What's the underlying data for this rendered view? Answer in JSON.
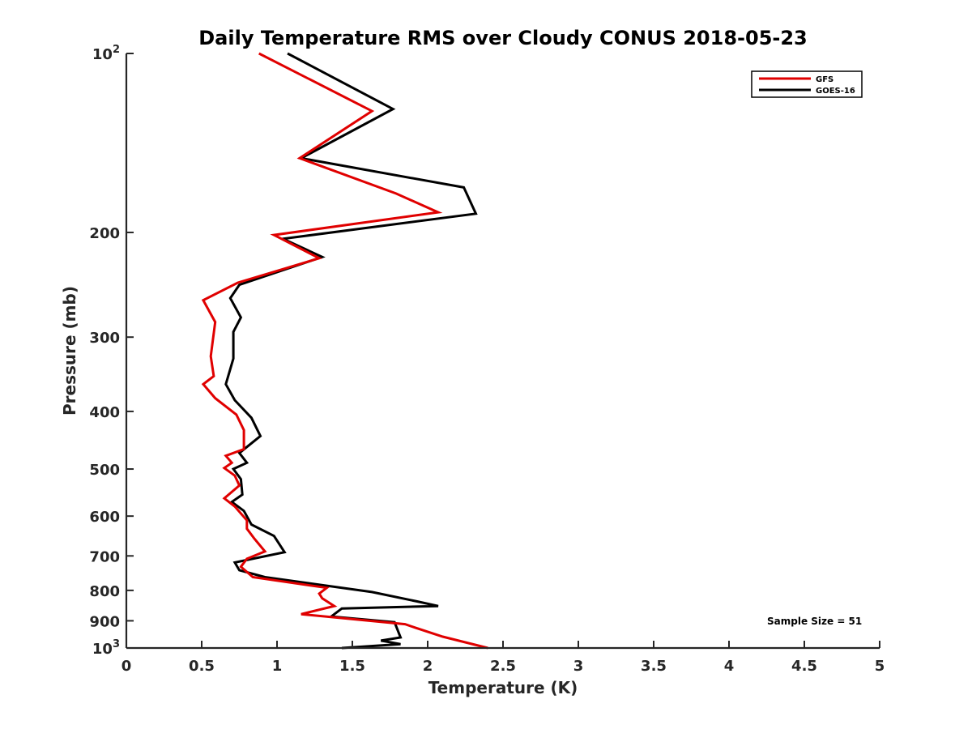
{
  "chart_data": {
    "type": "line",
    "title": "Daily Temperature RMS over Cloudy CONUS 2018-05-23",
    "xlabel": "Temperature (K)",
    "ylabel": "Pressure (mb)",
    "xlim": [
      0,
      5
    ],
    "ylim": [
      100,
      1000
    ],
    "y_scale": "log",
    "y_reversed": true,
    "grid": false,
    "legend_position": "top-right",
    "x_ticks": [
      0,
      0.5,
      1,
      1.5,
      2,
      2.5,
      3,
      3.5,
      4,
      4.5,
      5
    ],
    "x_tick_labels": [
      "0",
      "0.5",
      "1",
      "1.5",
      "2",
      "2.5",
      "3",
      "3.5",
      "4",
      "4.5",
      "5"
    ],
    "y_ticks": [
      100,
      200,
      300,
      400,
      500,
      600,
      700,
      800,
      900,
      1000
    ],
    "y_tick_labels": [
      {
        "base": "10",
        "exp": "2"
      },
      {
        "base": "200",
        "exp": ""
      },
      {
        "base": "300",
        "exp": ""
      },
      {
        "base": "400",
        "exp": ""
      },
      {
        "base": "500",
        "exp": ""
      },
      {
        "base": "600",
        "exp": ""
      },
      {
        "base": "700",
        "exp": ""
      },
      {
        "base": "800",
        "exp": ""
      },
      {
        "base": "900",
        "exp": ""
      },
      {
        "base": "10",
        "exp": "3"
      }
    ],
    "annotation": "Sample Size = 51",
    "series": [
      {
        "name": "GFS",
        "color": "#e00000",
        "points": [
          [
            0.88,
            100
          ],
          [
            1.63,
            125
          ],
          [
            1.15,
            150
          ],
          [
            1.79,
            172
          ],
          [
            2.07,
            185
          ],
          [
            0.98,
            202
          ],
          [
            1.28,
            221
          ],
          [
            0.74,
            243
          ],
          [
            0.51,
            260
          ],
          [
            0.59,
            283
          ],
          [
            0.56,
            323
          ],
          [
            0.58,
            349
          ],
          [
            0.51,
            360
          ],
          [
            0.59,
            380
          ],
          [
            0.73,
            405
          ],
          [
            0.78,
            430
          ],
          [
            0.78,
            463
          ],
          [
            0.66,
            475
          ],
          [
            0.7,
            488
          ],
          [
            0.65,
            498
          ],
          [
            0.72,
            513
          ],
          [
            0.75,
            533
          ],
          [
            0.65,
            560
          ],
          [
            0.72,
            578
          ],
          [
            0.8,
            610
          ],
          [
            0.8,
            630
          ],
          [
            0.85,
            655
          ],
          [
            0.92,
            688
          ],
          [
            0.8,
            708
          ],
          [
            0.76,
            730
          ],
          [
            0.84,
            760
          ],
          [
            1.33,
            792
          ],
          [
            1.28,
            810
          ],
          [
            1.3,
            825
          ],
          [
            1.38,
            850
          ],
          [
            1.16,
            877
          ],
          [
            1.85,
            912
          ],
          [
            1.92,
            925
          ],
          [
            2.1,
            957
          ],
          [
            2.4,
            1000
          ]
        ]
      },
      {
        "name": "GOES-16",
        "color": "#000000",
        "points": [
          [
            1.07,
            100
          ],
          [
            1.77,
            124
          ],
          [
            1.16,
            150
          ],
          [
            2.24,
            168
          ],
          [
            2.32,
            186
          ],
          [
            1.04,
            205
          ],
          [
            1.3,
            220
          ],
          [
            0.75,
            245
          ],
          [
            0.69,
            258
          ],
          [
            0.76,
            278
          ],
          [
            0.71,
            294
          ],
          [
            0.71,
            326
          ],
          [
            0.66,
            360
          ],
          [
            0.72,
            383
          ],
          [
            0.83,
            410
          ],
          [
            0.89,
            440
          ],
          [
            0.75,
            470
          ],
          [
            0.8,
            488
          ],
          [
            0.71,
            500
          ],
          [
            0.76,
            520
          ],
          [
            0.77,
            552
          ],
          [
            0.7,
            568
          ],
          [
            0.78,
            588
          ],
          [
            0.83,
            620
          ],
          [
            0.98,
            648
          ],
          [
            1.05,
            690
          ],
          [
            0.72,
            718
          ],
          [
            0.75,
            740
          ],
          [
            0.92,
            760
          ],
          [
            1.63,
            805
          ],
          [
            1.93,
            835
          ],
          [
            2.07,
            850
          ],
          [
            1.43,
            858
          ],
          [
            1.36,
            885
          ],
          [
            1.78,
            905
          ],
          [
            1.82,
            960
          ],
          [
            1.69,
            972
          ],
          [
            1.82,
            985
          ],
          [
            1.43,
            1000
          ]
        ]
      }
    ]
  }
}
